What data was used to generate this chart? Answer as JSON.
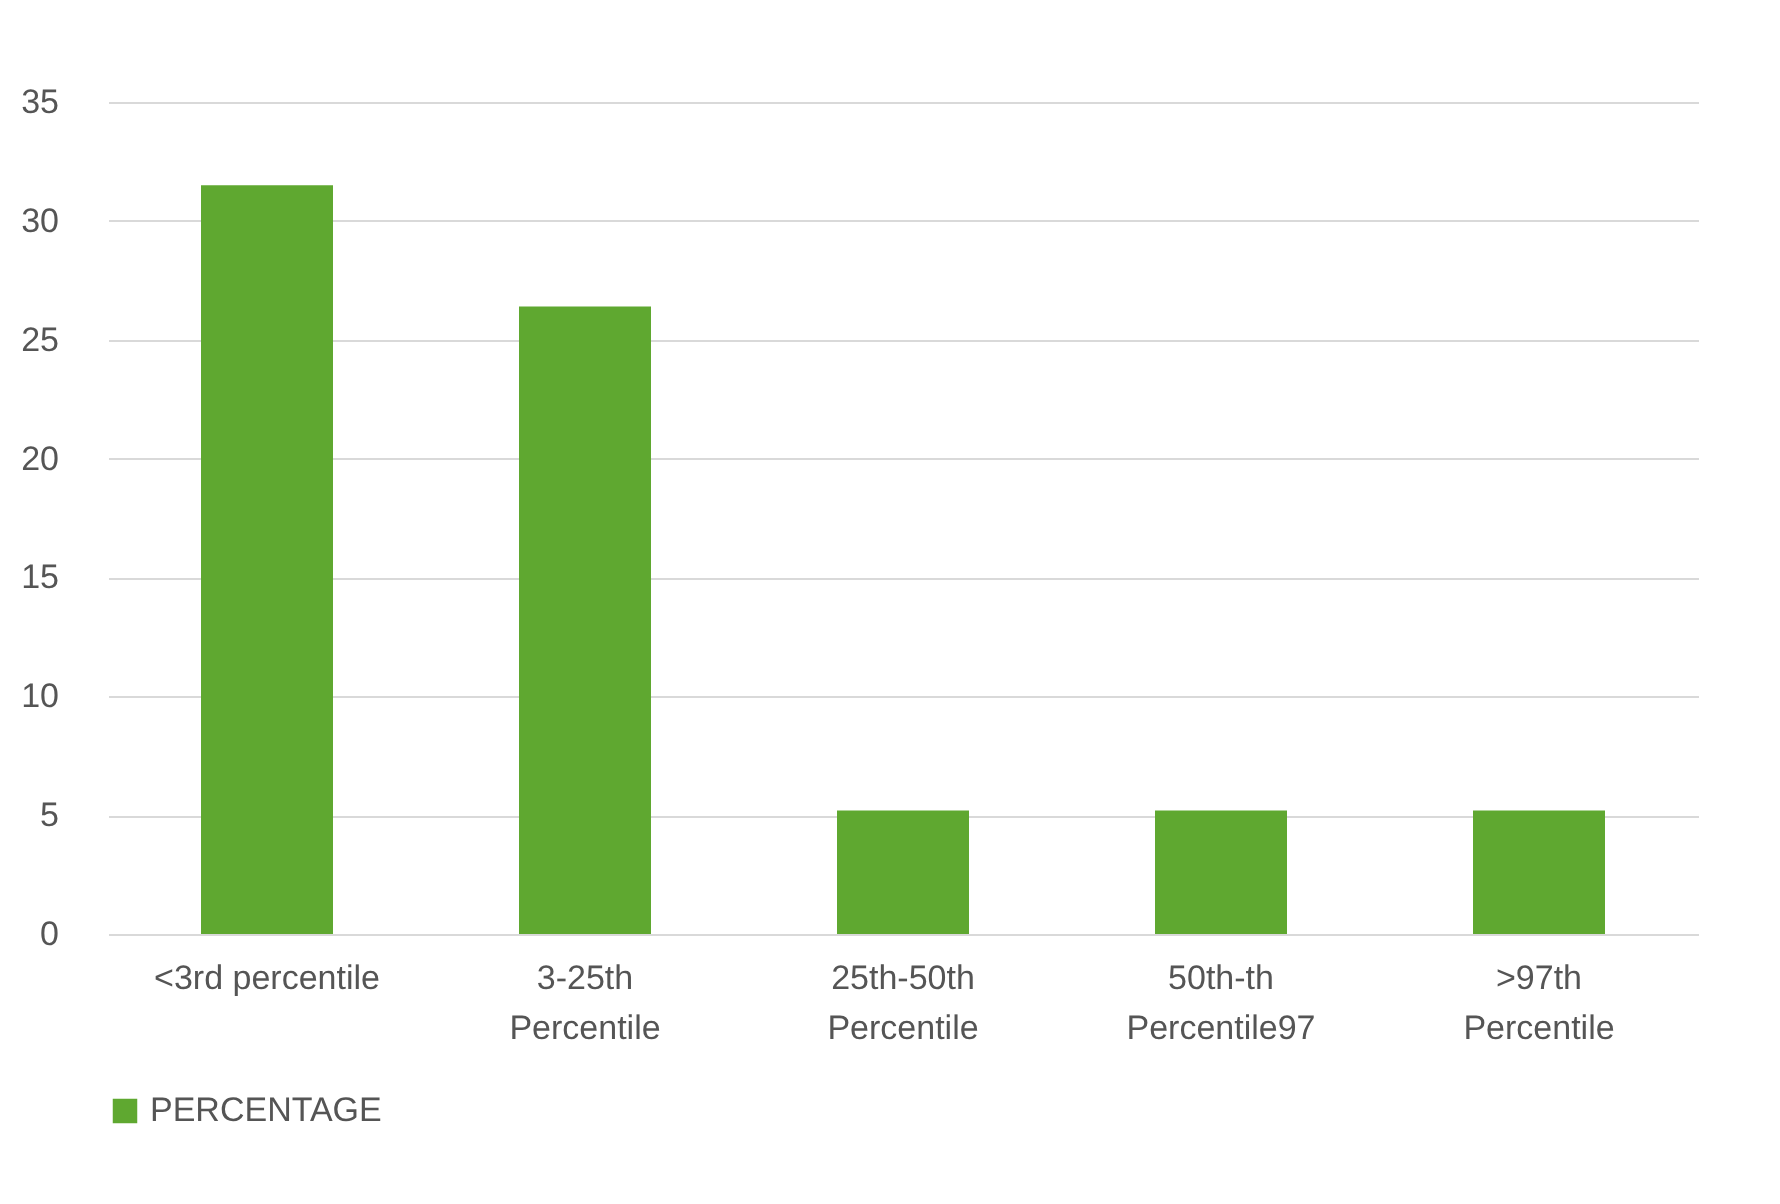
{
  "chart_data": {
    "type": "bar",
    "categories": [
      "<3rd percentile",
      "3-25th Percentile",
      "25th-50th Percentile",
      "50th-th Percentile97",
      ">97th Percentile"
    ],
    "series": [
      {
        "name": "PERCENTAGE",
        "color": "#5fa830",
        "values": [
          31.5,
          26.4,
          5.2,
          5.2,
          5.2
        ]
      }
    ],
    "ylim": [
      0,
      35
    ],
    "yticks": [
      0,
      5,
      10,
      15,
      20,
      25,
      30,
      35
    ],
    "grid": "y",
    "legend": "bottom"
  }
}
